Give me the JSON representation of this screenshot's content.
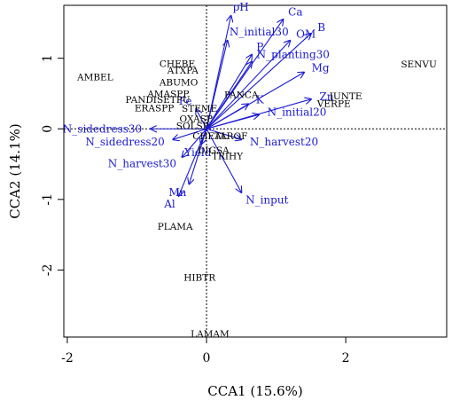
{
  "chart_data": {
    "type": "scatter",
    "xlabel": "CCA1 (15.6%)",
    "ylabel": "CCA2 (14.1%)",
    "xlim": [
      -2.05,
      3.45
    ],
    "ylim": [
      -2.95,
      1.75
    ],
    "xticks": [
      -2,
      0,
      2
    ],
    "yticks": [
      -2,
      -1,
      0,
      1
    ],
    "zero_lines": true,
    "colors": {
      "species": "#000000",
      "environment": "#1a1ad6"
    },
    "species": [
      {
        "label": "SENVU",
        "x": 3.05,
        "y": 0.92
      },
      {
        "label": "AMBEL",
        "x": -1.6,
        "y": 0.74
      },
      {
        "label": "CHEBE",
        "x": -0.42,
        "y": 0.93
      },
      {
        "label": "ATXPA",
        "x": -0.34,
        "y": 0.83
      },
      {
        "label": "ABUMO",
        "x": -0.4,
        "y": 0.66
      },
      {
        "label": "AMASPP",
        "x": -0.55,
        "y": 0.5
      },
      {
        "label": "PANDISETPU",
        "x": -0.7,
        "y": 0.42
      },
      {
        "label": "ERASPP",
        "x": -0.75,
        "y": 0.3
      },
      {
        "label": "PANCA",
        "x": 0.5,
        "y": 0.49
      },
      {
        "label": "JUNTE",
        "x": 2.0,
        "y": 0.47
      },
      {
        "label": "VERPE",
        "x": 1.83,
        "y": 0.36
      },
      {
        "label": "STEME",
        "x": -0.1,
        "y": 0.29
      },
      {
        "label": "OXASP",
        "x": -0.15,
        "y": 0.15
      },
      {
        "label": "SOLSP",
        "x": -0.2,
        "y": 0.05
      },
      {
        "label": "CHEAL",
        "x": 0.05,
        "y": -0.1
      },
      {
        "label": "TAROF",
        "x": 0.35,
        "y": -0.1
      },
      {
        "label": "DIGSA",
        "x": 0.1,
        "y": -0.3
      },
      {
        "label": "TRIHY",
        "x": 0.3,
        "y": -0.38
      },
      {
        "label": "PLAMA",
        "x": -0.45,
        "y": -1.38
      },
      {
        "label": "HIBTR",
        "x": -0.1,
        "y": -2.1
      },
      {
        "label": "LAMAM",
        "x": 0.05,
        "y": -2.9
      }
    ],
    "vectors": [
      {
        "label": "pH",
        "x": 0.35,
        "y": 1.6
      },
      {
        "label": "Ca",
        "x": 1.1,
        "y": 1.55
      },
      {
        "label": "B",
        "x": 1.5,
        "y": 1.35
      },
      {
        "label": "OM",
        "x": 1.2,
        "y": 1.25
      },
      {
        "label": "P",
        "x": 0.65,
        "y": 1.05
      },
      {
        "label": "N_initial30",
        "x": 0.3,
        "y": 1.25
      },
      {
        "label": "N_planting30",
        "x": 0.65,
        "y": 0.95
      },
      {
        "label": "Mg",
        "x": 1.4,
        "y": 0.8
      },
      {
        "label": "Zn",
        "x": 1.5,
        "y": 0.42
      },
      {
        "label": "K",
        "x": 0.6,
        "y": 0.35
      },
      {
        "label": "N_initial20",
        "x": 0.75,
        "y": 0.2
      },
      {
        "label": "Fe",
        "x": -0.15,
        "y": 0.28
      },
      {
        "label": "N_sidedress30",
        "x": -0.8,
        "y": 0.0
      },
      {
        "label": "N_sidedress20",
        "x": -0.48,
        "y": -0.15
      },
      {
        "label": "N_harvest20",
        "x": 0.5,
        "y": -0.15
      },
      {
        "label": "N_harvest30",
        "x": -0.35,
        "y": -0.4
      },
      {
        "label": "Yield",
        "x": -0.08,
        "y": -0.22
      },
      {
        "label": "Mn",
        "x": -0.25,
        "y": -0.78
      },
      {
        "label": "Al",
        "x": -0.4,
        "y": -0.95
      },
      {
        "label": "N_input",
        "x": 0.5,
        "y": -0.9
      }
    ]
  }
}
